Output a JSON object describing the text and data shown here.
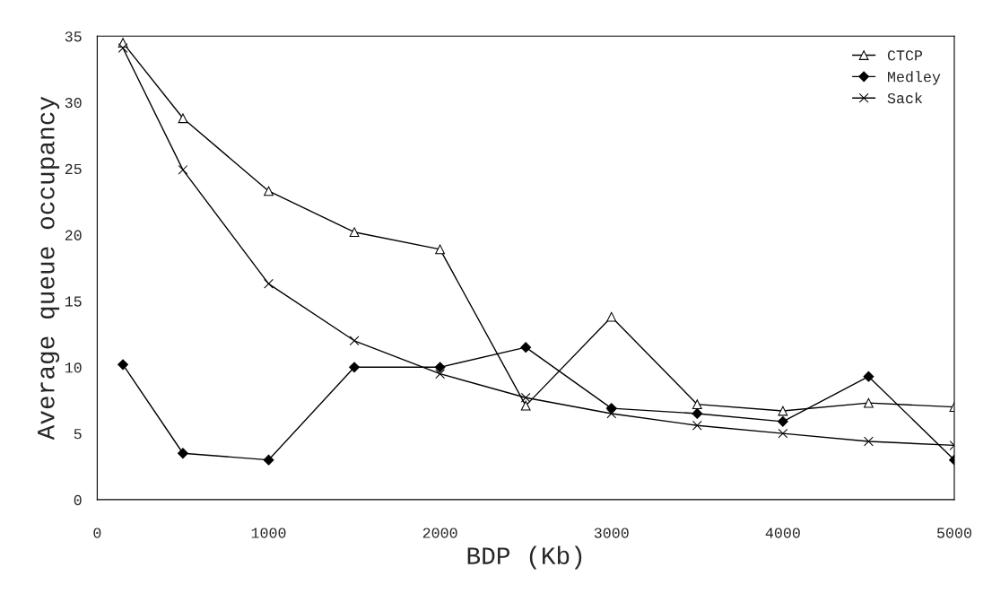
{
  "chart_data": {
    "type": "line",
    "xlabel": "BDP (Kb)",
    "ylabel": "Average queue occupancy",
    "x": [
      150,
      500,
      1000,
      1500,
      2000,
      2500,
      3000,
      3500,
      4000,
      4500,
      5000
    ],
    "series": [
      {
        "name": "CTCP",
        "color": "#000000",
        "marker": "triangle",
        "values": [
          34.5,
          28.8,
          23.3,
          20.2,
          18.9,
          7.1,
          13.8,
          7.2,
          6.7,
          7.3,
          7.0
        ]
      },
      {
        "name": "Medley",
        "color": "#000000",
        "marker": "diamond",
        "values": [
          10.2,
          3.5,
          3.0,
          10.0,
          10.0,
          11.5,
          6.9,
          6.5,
          5.9,
          9.3,
          3.0
        ]
      },
      {
        "name": "Sack",
        "color": "#000000",
        "marker": "cross",
        "values": [
          34.1,
          24.9,
          16.3,
          12.0,
          9.5,
          7.7,
          6.5,
          5.6,
          5.0,
          4.4,
          4.1
        ]
      }
    ],
    "xlim": [
      0,
      5000
    ],
    "xticks": [
      0,
      1000,
      2000,
      3000,
      4000,
      5000
    ],
    "ylim": [
      0,
      35
    ],
    "yticks": [
      0,
      5,
      10,
      15,
      20,
      25,
      30,
      35
    ],
    "grid": false,
    "legend": "top right"
  }
}
